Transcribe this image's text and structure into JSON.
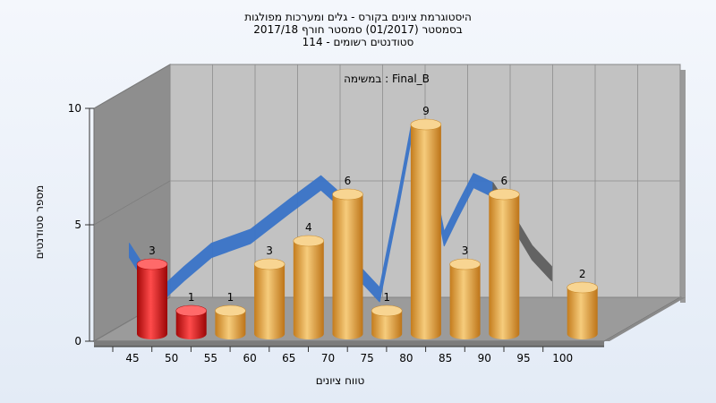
{
  "chart_data": {
    "type": "bar",
    "title_lines": [
      "היסטוגרמת ציונים בקורס - גלים ומערכות מפולגות",
      "בסמסטר  (01/2017)  סמסטר חורף 2017/18",
      "סטודנטים רשומים - 114"
    ],
    "annotation": "במשימה : Final_B",
    "xlabel": "טווח ציונים",
    "ylabel": "מספר סטודנטים",
    "categories": [
      "45",
      "50",
      "55",
      "60",
      "65",
      "70",
      "75",
      "80",
      "85",
      "90",
      "95",
      "100"
    ],
    "values": [
      3,
      1,
      1,
      3,
      4,
      6,
      1,
      9,
      3,
      6,
      0,
      2
    ],
    "bar_labels": [
      "3",
      "1",
      "1",
      "3",
      "4",
      "6",
      "1",
      "9",
      "3",
      "6",
      "",
      "2"
    ],
    "failing_bins": 2,
    "y_ticks": [
      "0",
      "5",
      "10"
    ],
    "ylim": [
      0,
      10
    ],
    "curve": [
      [
        0.4,
        3.9
      ],
      [
        0.9,
        2.6
      ],
      [
        1.35,
        2.2
      ],
      [
        1.8,
        2.9
      ],
      [
        2.5,
        3.9
      ],
      [
        3.5,
        4.5
      ],
      [
        4.5,
        5.8
      ],
      [
        5.3,
        6.8
      ],
      [
        5.7,
        6.2
      ],
      [
        6.3,
        2.9
      ],
      [
        6.8,
        2.0
      ],
      [
        7.3,
        6.2
      ],
      [
        7.6,
        8.9
      ],
      [
        8.0,
        8.2
      ],
      [
        8.45,
        4.4
      ],
      [
        8.8,
        5.6
      ],
      [
        9.2,
        6.9
      ],
      [
        9.7,
        6.5
      ],
      [
        10.2,
        5.2
      ],
      [
        10.7,
        3.8
      ],
      [
        11.2,
        2.9
      ]
    ],
    "curve_color": "#3a74c8",
    "curve_tail_color": "#5e5e5e",
    "bar_color_fail": "#e21b1b",
    "bar_color_pass": "#e8a843",
    "grid": true,
    "legend": "none"
  }
}
